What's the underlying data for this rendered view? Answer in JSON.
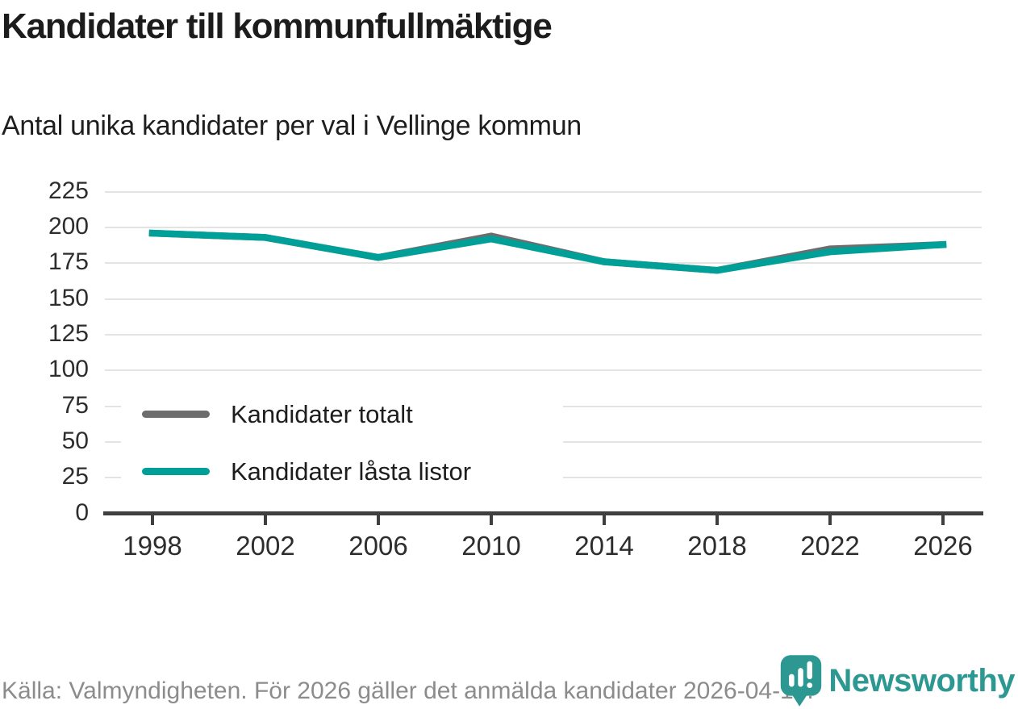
{
  "header": {
    "title": "Kandidater till kommunfullmäktige",
    "subtitle": "Antal unika kandidater per val i Vellinge kommun"
  },
  "footer": {
    "source": "Källa: Valmyndigheten. För 2026 gäller det anmälda kandidater 2026-04-10.",
    "brand": "Newsworthy"
  },
  "colors": {
    "series_total": "#6d6d6d",
    "series_locked": "#00a099",
    "gridline": "#e3e3e3",
    "axis": "#3f3f3f",
    "tick_text": "#2d2d2d",
    "footer_text": "#8c8c8c",
    "brand_teal": "#2d9892"
  },
  "chart_data": {
    "type": "line",
    "x": [
      1998,
      2002,
      2006,
      2010,
      2014,
      2018,
      2022,
      2026
    ],
    "series": [
      {
        "name": "Kandidater totalt",
        "color": "#6d6d6d",
        "values": [
          196,
          193,
          179,
          194,
          176,
          170,
          185,
          188
        ]
      },
      {
        "name": "Kandidater låsta listor",
        "color": "#00a099",
        "values": [
          196,
          193,
          179,
          192,
          176,
          170,
          183,
          188
        ]
      }
    ],
    "title": "Kandidater till kommunfullmäktige",
    "subtitle": "Antal unika kandidater per val i Vellinge kommun",
    "xlabel": "",
    "ylabel": "",
    "ylim": [
      0,
      225
    ],
    "yticks": [
      0,
      25,
      50,
      75,
      100,
      125,
      150,
      175,
      200,
      225
    ],
    "grid": true,
    "legend_position": "inside-left"
  }
}
